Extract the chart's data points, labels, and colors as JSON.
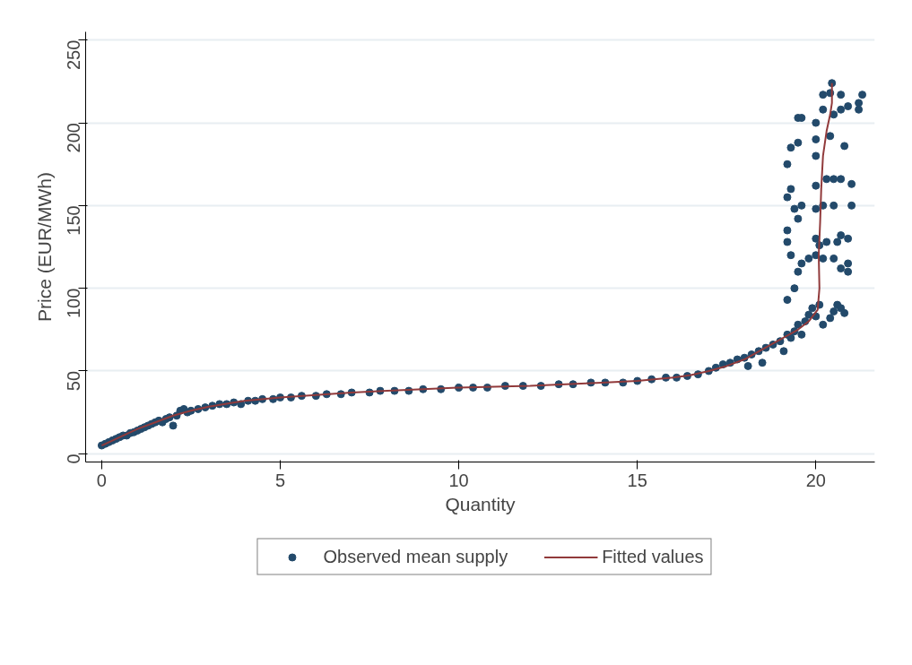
{
  "chart_data": {
    "type": "scatter",
    "xlabel": "Quantity",
    "ylabel": "Price (EUR/MWh)",
    "xlim": [
      -0.45,
      21.65
    ],
    "ylim": [
      -5,
      255
    ],
    "xticks": [
      0,
      5,
      10,
      15,
      20
    ],
    "yticks": [
      0,
      50,
      100,
      150,
      200,
      250
    ],
    "grid": "y",
    "legend": "bottom",
    "series": [
      {
        "name": "Observed mean supply",
        "marker": "circle",
        "color": "#234a6b",
        "x": [
          0,
          0.1,
          0.2,
          0.3,
          0.4,
          0.5,
          0.6,
          0.7,
          0.8,
          0.9,
          1.0,
          1.1,
          1.2,
          1.3,
          1.4,
          1.5,
          1.6,
          1.7,
          1.8,
          1.9,
          2.0,
          2.1,
          2.2,
          2.3,
          2.4,
          2.5,
          2.7,
          2.9,
          3.1,
          3.3,
          3.5,
          3.7,
          3.9,
          4.1,
          4.3,
          4.5,
          4.8,
          5.0,
          5.3,
          5.6,
          6.0,
          6.3,
          6.7,
          7.0,
          7.5,
          7.8,
          8.2,
          8.6,
          9.0,
          9.5,
          10.0,
          10.4,
          10.8,
          11.3,
          11.8,
          12.3,
          12.8,
          13.2,
          13.7,
          14.1,
          14.6,
          15.0,
          15.4,
          15.8,
          16.1,
          16.4,
          16.7,
          17.0,
          17.2,
          17.4,
          17.6,
          17.8,
          18.0,
          18.1,
          18.2,
          18.4,
          18.5,
          18.6,
          18.8,
          19.0,
          19.1,
          19.2,
          19.3,
          19.4,
          19.5,
          19.6,
          19.7,
          19.8,
          19.9,
          20.0,
          20.1,
          20.2,
          20.4,
          20.5,
          20.6,
          20.7,
          20.8,
          19.2,
          19.4,
          19.5,
          19.3,
          19.6,
          19.8,
          20.0,
          20.2,
          20.5,
          20.7,
          20.9,
          20.9,
          20.6,
          20.9,
          19.2,
          19.2,
          20.0,
          20.1,
          20.3,
          20.7,
          19.5,
          19.4,
          19.6,
          20.0,
          20.2,
          20.5,
          21.0,
          19.2,
          19.3,
          20.0,
          20.3,
          20.5,
          20.7,
          21.0,
          19.2,
          19.3,
          19.5,
          20.0,
          20.0,
          20.4,
          20.8,
          19.5,
          19.6,
          20.0,
          20.2,
          20.5,
          20.7,
          21.2,
          21.2,
          20.4,
          20.2,
          20.7,
          20.9,
          21.3,
          20.45
        ],
        "values": [
          5,
          6,
          7,
          8,
          9,
          10,
          11,
          11,
          12.5,
          13,
          14,
          15,
          16,
          17,
          18,
          19,
          20,
          19,
          21,
          22,
          17,
          23,
          26,
          27,
          25,
          26,
          27,
          28,
          29,
          30,
          30,
          31,
          30,
          32,
          32,
          33,
          33,
          34,
          34,
          35,
          35,
          36,
          36,
          37,
          37,
          38,
          38,
          38,
          39,
          39,
          40,
          40,
          40,
          41,
          41,
          41,
          42,
          42,
          43,
          43,
          43,
          44,
          45,
          46,
          46,
          47,
          48,
          50,
          52,
          54,
          55,
          57,
          58,
          53,
          60,
          62,
          55,
          64,
          66,
          68,
          62,
          72,
          70,
          74,
          78,
          72,
          80,
          84,
          88,
          83,
          90,
          78,
          82,
          86,
          90,
          88,
          85,
          93,
          100,
          110,
          120,
          115,
          118,
          120,
          118,
          118,
          112,
          110,
          115,
          128,
          130,
          128,
          135,
          130,
          126,
          128,
          132,
          142,
          148,
          150,
          148,
          150,
          150,
          150,
          155,
          160,
          162,
          166,
          166,
          166,
          163,
          175,
          185,
          188,
          180,
          190,
          192,
          186,
          203,
          203,
          200,
          208,
          205,
          208,
          208,
          212,
          218,
          217,
          217,
          210,
          217,
          224
        ]
      },
      {
        "name": "Fitted values",
        "type": "line",
        "color": "#913a3b",
        "x": [
          0,
          0.5,
          1,
          1.5,
          2,
          2.5,
          3,
          4,
          5,
          6,
          7,
          8,
          9,
          10,
          11,
          12,
          13,
          14,
          15,
          16,
          16.5,
          17,
          17.5,
          18,
          18.5,
          19,
          19.5,
          19.8,
          20.05,
          20.1,
          20.08,
          20.12,
          20.15,
          20.2,
          20.3,
          20.4,
          20.45,
          20.45
        ],
        "values": [
          5,
          10,
          15,
          19,
          23,
          26,
          28.5,
          32,
          34,
          35.5,
          37,
          38,
          39,
          40,
          40.5,
          41,
          42,
          43,
          44,
          46,
          47.5,
          50,
          53,
          57,
          63,
          69,
          75,
          80,
          87,
          100,
          120,
          140,
          160,
          180,
          195,
          205,
          212,
          224
        ]
      }
    ]
  }
}
